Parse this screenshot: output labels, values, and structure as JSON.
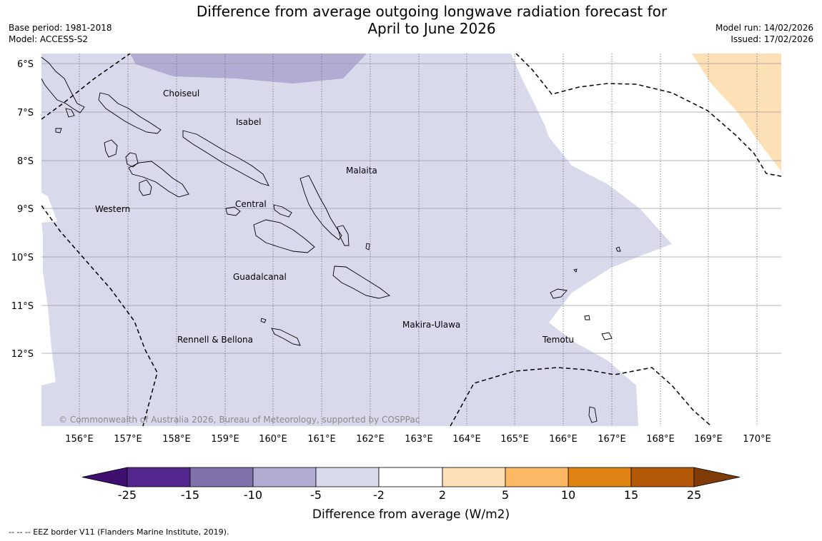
{
  "title": {
    "line1": "Difference from average outgoing longwave radiation forecast for",
    "line2": "April to June 2026"
  },
  "meta": {
    "base_period": "Base period: 1981-2018",
    "model": "Model: ACCESS-S2",
    "model_run": "Model run: 14/02/2026",
    "issued": "Issued: 17/02/2026"
  },
  "map": {
    "lat_labels": [
      "6°S",
      "7°S",
      "8°S",
      "9°S",
      "10°S",
      "11°S",
      "12°S"
    ],
    "lon_labels": [
      "156°E",
      "157°E",
      "158°E",
      "159°E",
      "160°E",
      "161°E",
      "162°E",
      "163°E",
      "164°E",
      "165°E",
      "166°E",
      "167°E",
      "168°E",
      "169°E",
      "170°E"
    ],
    "regions": [
      "Choiseul",
      "Isabel",
      "Malaita",
      "Western",
      "Central",
      "Guadalcanal",
      "Makira-Ulawa",
      "Rennell & Bellona",
      "Temotu"
    ],
    "copyright": "© Commonwealth of Australia 2026, Bureau of Meteorology, supported by COSPPac"
  },
  "colorbar": {
    "title": "Difference from average (W/m2)",
    "labels": [
      "-25",
      "-15",
      "-10",
      "-5",
      "-2",
      "2",
      "5",
      "10",
      "15",
      "25"
    ],
    "colors": [
      "#3f0f6f",
      "#54278f",
      "#8073ac",
      "#b2abd2",
      "#d8daeb",
      "#ffffff",
      "#fee0b6",
      "#fdb863",
      "#e08214",
      "#b35806",
      "#7f3b08"
    ]
  },
  "footnote": "--  --  -- EEZ border V11 (Flanders Marine Institute, 2019)."
}
